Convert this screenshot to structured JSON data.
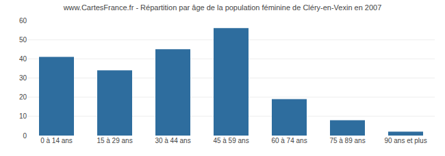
{
  "chart_data": {
    "type": "bar",
    "title": "www.CartesFrance.fr - Répartition par âge de la population féminine de Cléry-en-Vexin en 2007",
    "categories": [
      "0 à 14 ans",
      "15 à 29 ans",
      "30 à 44 ans",
      "45 à 59 ans",
      "60 à 74 ans",
      "75 à 89 ans",
      "90 ans et plus"
    ],
    "values": [
      41,
      34,
      45,
      56,
      19,
      8,
      2
    ],
    "color": "#2e6d9e",
    "ylim": [
      0,
      60
    ],
    "yticks": [
      0,
      10,
      20,
      30,
      40,
      50,
      60
    ],
    "grid": true
  }
}
